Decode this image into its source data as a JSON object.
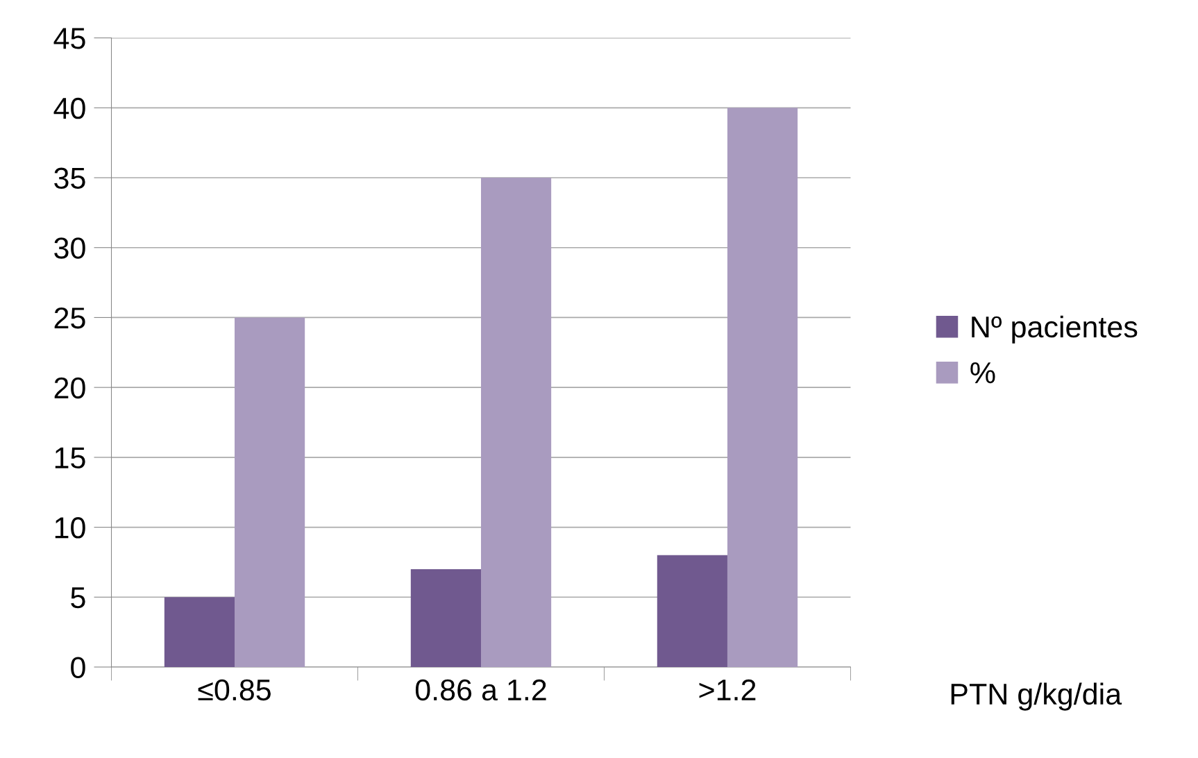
{
  "chart_data": {
    "type": "bar",
    "xlabel": "PTN g/kg/dia",
    "categories": [
      "≤0.85",
      "0.86 a 1.2",
      ">1.2"
    ],
    "series": [
      {
        "name": "Nº pacientes",
        "color": "#70598f",
        "values": [
          5,
          7,
          8
        ]
      },
      {
        "name": "%",
        "color": "#a99bbf",
        "values": [
          25,
          35,
          40
        ]
      }
    ],
    "ylim": [
      0,
      45
    ],
    "yticks": [
      0,
      5,
      10,
      15,
      20,
      25,
      30,
      35,
      40,
      45
    ],
    "grid": "y",
    "legend": "right"
  }
}
